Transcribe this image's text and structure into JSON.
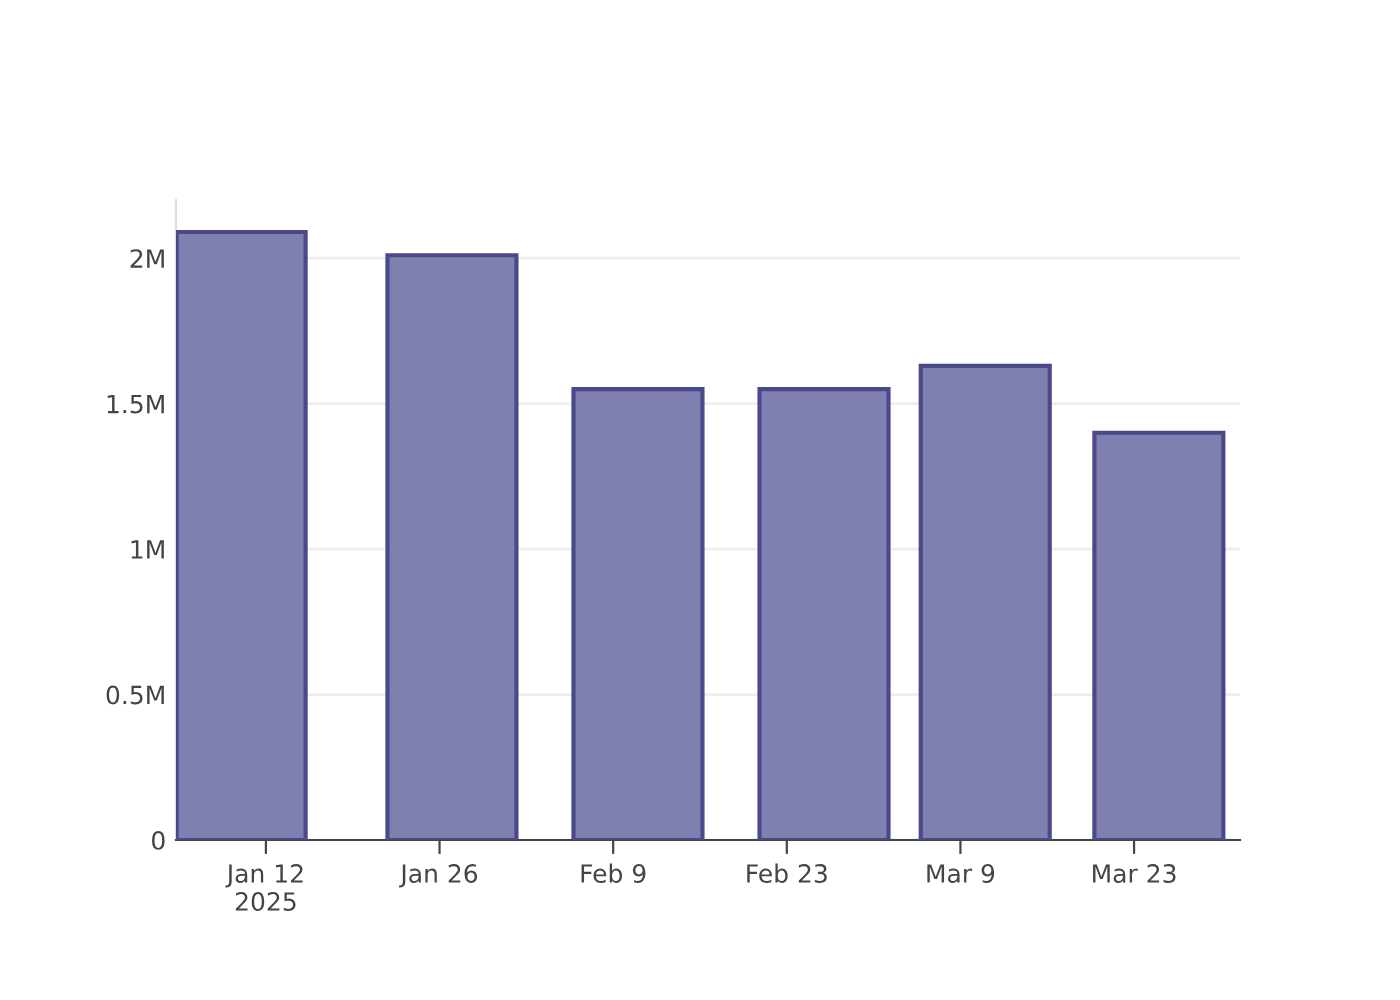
{
  "chart_data": {
    "type": "bar",
    "x": [
      "2025-01-10",
      "2025-01-27",
      "2025-02-11",
      "2025-02-26",
      "2025-03-11",
      "2025-03-25"
    ],
    "values": [
      2090000,
      2010000,
      1550000,
      1550000,
      1630000,
      1400000
    ],
    "color": "#7f7fb0",
    "xlim": [
      "2025-01-04T18:00",
      "2025-03-31T13:00"
    ],
    "xticks": [
      {
        "value": "2025-01-12",
        "label": "Jan 12\n2025"
      },
      {
        "value": "2025-01-26",
        "label": "Jan 26"
      },
      {
        "value": "2025-02-09",
        "label": "Feb 9"
      },
      {
        "value": "2025-02-23",
        "label": "Feb 23"
      },
      {
        "value": "2025-03-09",
        "label": "Mar 9"
      },
      {
        "value": "2025-03-23",
        "label": "Mar 23"
      }
    ],
    "ylim": [
      0,
      2200000
    ],
    "yticks": [
      0,
      {
        "value": 500000,
        "label": "0.5M"
      },
      {
        "value": 1000000,
        "label": "1M"
      },
      {
        "value": 1500000,
        "label": "1.5M"
      },
      {
        "value": 2000000,
        "label": "2M"
      }
    ],
    "grid": "y"
  }
}
